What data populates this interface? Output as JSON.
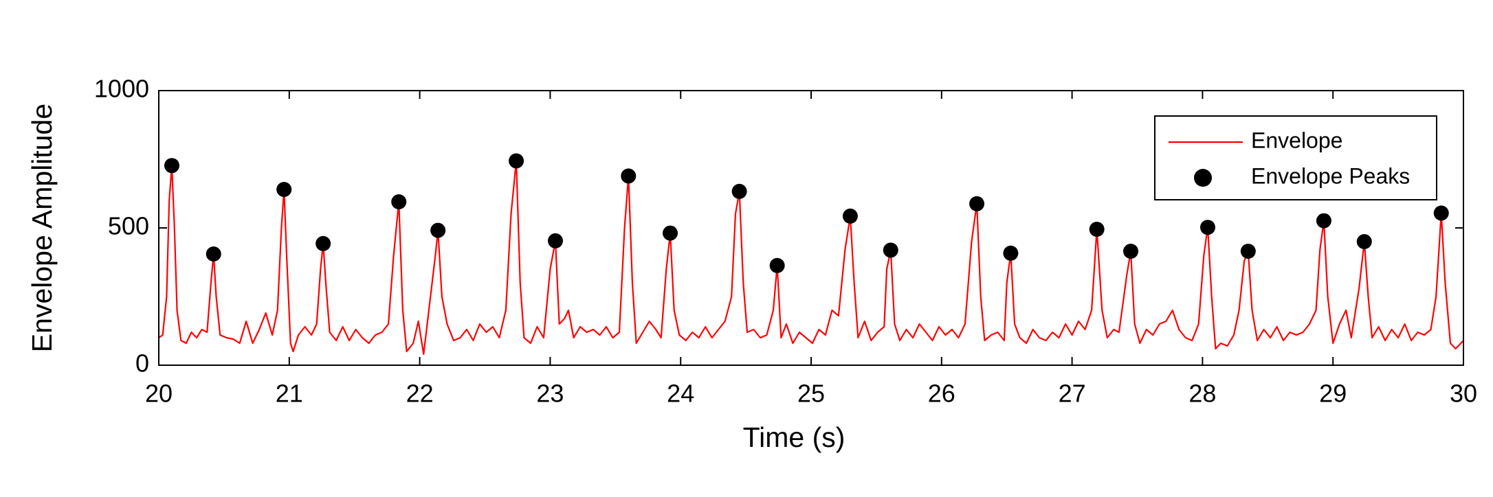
{
  "chart_data": {
    "type": "line",
    "xlabel": "Time (s)",
    "ylabel": "Envelope Amplitude",
    "xlim": [
      20,
      30
    ],
    "xticks": [
      20,
      21,
      22,
      23,
      24,
      25,
      26,
      27,
      28,
      29,
      30
    ],
    "ylim": [
      0,
      1000
    ],
    "yticks": [
      0,
      500,
      1000
    ],
    "grid": false,
    "legend": "upper right",
    "series": [
      {
        "name": "Envelope",
        "type": "line",
        "color": "#ff0000",
        "x": [
          20.0,
          20.03,
          20.06,
          20.08,
          20.1,
          20.12,
          20.14,
          20.17,
          20.21,
          20.25,
          20.29,
          20.33,
          20.37,
          20.4,
          20.42,
          20.44,
          20.47,
          20.52,
          20.57,
          20.62,
          20.67,
          20.72,
          20.77,
          20.82,
          20.87,
          20.91,
          20.94,
          20.96,
          20.98,
          21.01,
          21.03,
          21.07,
          21.12,
          21.17,
          21.21,
          21.24,
          21.26,
          21.28,
          21.31,
          21.36,
          21.41,
          21.46,
          21.51,
          21.56,
          21.61,
          21.66,
          21.71,
          21.76,
          21.8,
          21.84,
          21.87,
          21.9,
          21.95,
          21.99,
          22.03,
          22.07,
          22.12,
          22.14,
          22.17,
          22.21,
          22.26,
          22.31,
          22.36,
          22.41,
          22.46,
          22.51,
          22.56,
          22.61,
          22.66,
          22.7,
          22.74,
          22.77,
          22.8,
          22.85,
          22.9,
          22.95,
          23.0,
          23.04,
          23.07,
          23.11,
          23.14,
          23.18,
          23.23,
          23.28,
          23.33,
          23.38,
          23.43,
          23.48,
          23.53,
          23.57,
          23.6,
          23.63,
          23.66,
          23.71,
          23.76,
          23.81,
          23.85,
          23.89,
          23.92,
          23.95,
          23.99,
          24.04,
          24.09,
          24.14,
          24.19,
          24.24,
          24.29,
          24.34,
          24.39,
          24.42,
          24.45,
          24.48,
          24.51,
          24.56,
          24.61,
          24.66,
          24.71,
          24.74,
          24.77,
          24.81,
          24.86,
          24.91,
          24.96,
          25.01,
          25.06,
          25.11,
          25.16,
          25.21,
          25.26,
          25.3,
          25.33,
          25.36,
          25.41,
          25.46,
          25.51,
          25.56,
          25.58,
          25.61,
          25.64,
          25.68,
          25.73,
          25.78,
          25.83,
          25.88,
          25.93,
          25.98,
          26.03,
          26.08,
          26.13,
          26.18,
          26.23,
          26.27,
          26.3,
          26.33,
          26.38,
          26.43,
          26.48,
          26.5,
          26.53,
          26.56,
          26.6,
          26.65,
          26.7,
          26.75,
          26.8,
          26.85,
          26.9,
          26.95,
          27.0,
          27.05,
          27.1,
          27.15,
          27.19,
          27.23,
          27.27,
          27.32,
          27.36,
          27.42,
          27.45,
          27.48,
          27.52,
          27.57,
          27.62,
          27.67,
          27.72,
          27.77,
          27.82,
          27.87,
          27.92,
          27.97,
          28.01,
          28.04,
          28.07,
          28.1,
          28.14,
          28.19,
          28.24,
          28.28,
          28.32,
          28.35,
          28.38,
          28.42,
          28.47,
          28.52,
          28.57,
          28.62,
          28.67,
          28.72,
          28.77,
          28.82,
          28.87,
          28.9,
          28.93,
          28.96,
          29.0,
          29.05,
          29.1,
          29.14,
          29.2,
          29.24,
          29.27,
          29.3,
          29.35,
          29.4,
          29.45,
          29.5,
          29.55,
          29.6,
          29.65,
          29.7,
          29.75,
          29.79,
          29.83,
          29.86,
          29.9,
          29.94,
          30.0
        ],
        "values": [
          100,
          110,
          250,
          600,
          727,
          500,
          200,
          90,
          80,
          120,
          100,
          130,
          120,
          300,
          405,
          250,
          110,
          100,
          95,
          80,
          160,
          80,
          130,
          190,
          110,
          200,
          500,
          640,
          400,
          80,
          50,
          110,
          140,
          110,
          150,
          350,
          443,
          300,
          120,
          90,
          140,
          90,
          130,
          100,
          80,
          110,
          120,
          150,
          400,
          595,
          200,
          50,
          80,
          160,
          40,
          200,
          400,
          491,
          250,
          150,
          90,
          100,
          130,
          90,
          150,
          120,
          140,
          100,
          200,
          550,
          744,
          300,
          100,
          80,
          140,
          100,
          350,
          453,
          150,
          170,
          200,
          100,
          140,
          120,
          130,
          110,
          140,
          100,
          120,
          500,
          689,
          300,
          80,
          120,
          160,
          130,
          100,
          350,
          481,
          200,
          110,
          90,
          120,
          100,
          140,
          100,
          130,
          160,
          250,
          550,
          633,
          300,
          120,
          130,
          100,
          110,
          200,
          363,
          100,
          150,
          80,
          120,
          100,
          80,
          130,
          110,
          200,
          180,
          420,
          543,
          300,
          100,
          160,
          90,
          120,
          140,
          350,
          419,
          150,
          90,
          130,
          100,
          150,
          120,
          90,
          140,
          110,
          130,
          100,
          150,
          450,
          588,
          250,
          90,
          110,
          120,
          90,
          300,
          408,
          150,
          100,
          80,
          130,
          100,
          90,
          120,
          100,
          150,
          110,
          160,
          130,
          200,
          495,
          200,
          100,
          130,
          120,
          330,
          415,
          150,
          80,
          130,
          110,
          150,
          160,
          200,
          130,
          100,
          90,
          150,
          400,
          502,
          250,
          60,
          80,
          70,
          110,
          200,
          380,
          415,
          200,
          90,
          130,
          100,
          140,
          90,
          120,
          110,
          120,
          150,
          200,
          420,
          526,
          250,
          80,
          150,
          200,
          100,
          280,
          450,
          250,
          100,
          140,
          90,
          130,
          100,
          150,
          90,
          120,
          110,
          130,
          250,
          554,
          300,
          80,
          60,
          90
        ]
      },
      {
        "name": "Envelope Peaks",
        "type": "scatter",
        "color": "#000000",
        "x": [
          20.1,
          20.42,
          20.96,
          21.26,
          21.84,
          22.14,
          22.74,
          23.04,
          23.6,
          23.92,
          24.45,
          24.74,
          25.3,
          25.61,
          26.27,
          26.53,
          27.19,
          27.45,
          28.04,
          28.35,
          28.93,
          29.24,
          29.83
        ],
        "values": [
          727,
          405,
          640,
          443,
          595,
          491,
          744,
          453,
          689,
          481,
          633,
          363,
          543,
          419,
          588,
          408,
          495,
          415,
          502,
          415,
          526,
          450,
          554
        ]
      }
    ]
  }
}
